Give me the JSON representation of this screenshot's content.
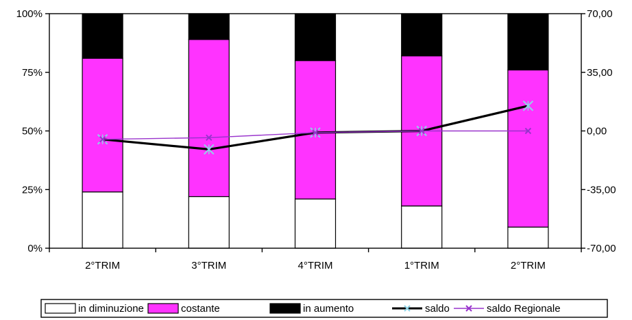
{
  "chart_data": {
    "type": "bar",
    "stacked_percent": true,
    "categories": [
      "2°TRIM",
      "3°TRIM",
      "4°TRIM",
      "1°TRIM",
      "2°TRIM"
    ],
    "series": [
      {
        "name": "in diminuzione",
        "type": "bar",
        "axis": "left",
        "values": [
          24,
          22,
          21,
          18,
          9
        ],
        "color": "#ffffff"
      },
      {
        "name": "costante",
        "type": "bar",
        "axis": "left",
        "values": [
          57,
          67,
          59,
          64,
          67
        ],
        "color": "#ff33ff"
      },
      {
        "name": "in aumento",
        "type": "bar",
        "axis": "left",
        "values": [
          19,
          11,
          20,
          18,
          24
        ],
        "color": "#000000"
      },
      {
        "name": "saldo",
        "type": "line",
        "axis": "right",
        "values": [
          -5,
          -11,
          -1,
          0,
          15
        ],
        "color": "#000000",
        "marker": "asterisk"
      },
      {
        "name": "saldo Regionale",
        "type": "line",
        "axis": "right",
        "values": [
          -5,
          -4,
          -1,
          0,
          0
        ],
        "color": "#9933cc",
        "marker": "x"
      }
    ],
    "y_left": {
      "ticks": [
        "0%",
        "25%",
        "50%",
        "75%",
        "100%"
      ],
      "ylim": [
        0,
        100
      ]
    },
    "y_right": {
      "ticks": [
        "-70,00",
        "-35,00",
        "0,00",
        "35,00",
        "70,00"
      ],
      "ylim": [
        -70,
        70
      ]
    },
    "title": "",
    "xlabel": "",
    "ylabel": "",
    "grid": false,
    "legend": "bottom"
  }
}
